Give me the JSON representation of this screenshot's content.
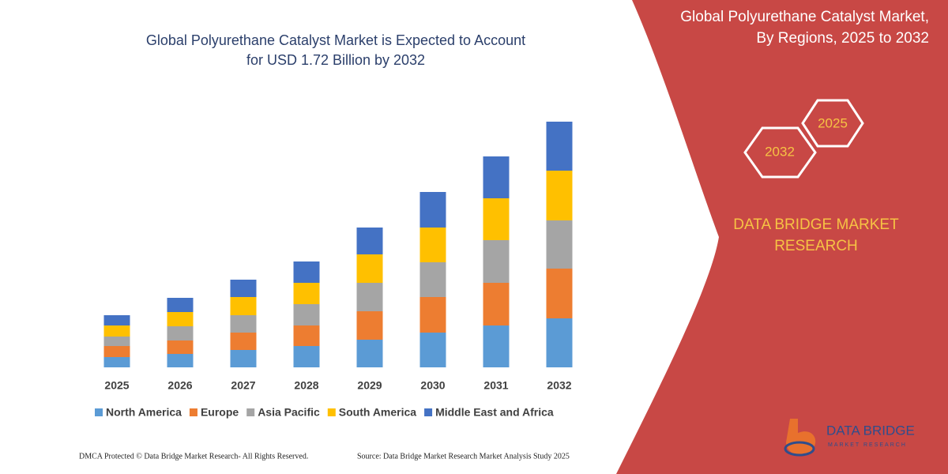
{
  "chart_data": {
    "type": "stacked_bar",
    "title": [
      "Global Polyurethane Catalyst Market is Expected to Account",
      "for USD 1.72 Billion by 2032"
    ],
    "categories": [
      "2025",
      "2026",
      "2027",
      "2028",
      "2029",
      "2030",
      "2031",
      "2032"
    ],
    "series": [
      {
        "name": "North America",
        "color": "#5b9bd5",
        "values": [
          13,
          17,
          22,
          27,
          35,
          44,
          53,
          62
        ]
      },
      {
        "name": "Europe",
        "color": "#ed7d31",
        "values": [
          14,
          17,
          22,
          26,
          36,
          45,
          54,
          63
        ]
      },
      {
        "name": "Asia Pacific",
        "color": "#a5a5a5",
        "values": [
          12,
          18,
          22,
          27,
          36,
          44,
          54,
          61
        ]
      },
      {
        "name": "South America",
        "color": "#ffc000",
        "values": [
          14,
          18,
          23,
          27,
          36,
          44,
          53,
          63
        ]
      },
      {
        "name": "Middle East and Africa",
        "color": "#4472c4",
        "values": [
          13,
          18,
          22,
          27,
          34,
          45,
          53,
          62
        ]
      }
    ]
  },
  "panel": {
    "title": [
      "Global Polyurethane Catalyst Market,",
      "By Regions, 2025 to 2032"
    ],
    "hex_years": [
      "2025",
      "2032"
    ],
    "brand": [
      "DATA BRIDGE MARKET",
      "RESEARCH"
    ]
  },
  "logo": {
    "name": "DATA BRIDGE",
    "tagline": "MARKET RESEARCH"
  },
  "footer": {
    "left": "DMCA Protected © Data Bridge Market Research-  All Rights Reserved.",
    "right": "Source: Data Bridge Market Research  Market Analysis Study 2025"
  }
}
